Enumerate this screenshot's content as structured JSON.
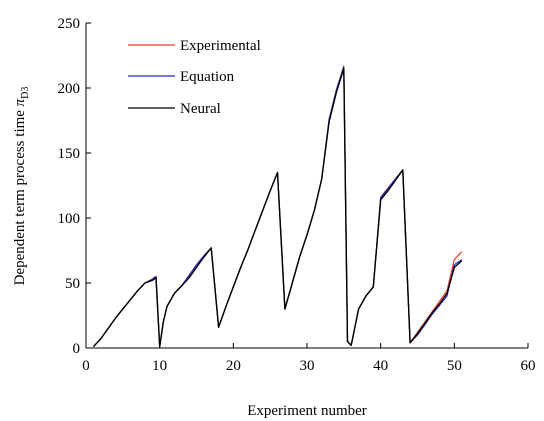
{
  "chart_data": {
    "type": "line",
    "xlabel": "Experiment number",
    "ylabel": "Dependent term process time ",
    "ylabel_symbol": "π",
    "ylabel_subscript": "D3",
    "xlim": [
      0,
      60
    ],
    "ylim": [
      0,
      250
    ],
    "xticks": [
      0,
      10,
      20,
      30,
      40,
      50,
      60
    ],
    "yticks": [
      0,
      50,
      100,
      150,
      200,
      250
    ],
    "xtick_labels": [
      "0",
      "10",
      "20",
      "30",
      "40",
      "50",
      "60"
    ],
    "ytick_labels": [
      "0",
      "50",
      "100",
      "150",
      "200",
      "250"
    ],
    "grid": false,
    "legend_position": "top-left",
    "series": [
      {
        "name": "Experimental",
        "color": "#e8392b",
        "x": [
          1,
          2,
          3,
          4,
          5,
          6,
          7,
          8,
          9,
          9.5,
          10,
          10.5,
          11,
          12,
          13,
          14,
          15,
          16,
          17,
          18,
          19,
          20,
          21,
          22,
          23,
          24,
          25,
          26,
          27,
          28,
          29,
          30,
          31,
          32,
          33,
          34,
          35,
          35.5,
          36,
          37,
          38,
          39,
          40,
          41,
          42,
          43,
          44,
          45,
          46,
          47,
          48,
          49,
          50,
          51
        ],
        "y": [
          1,
          7,
          15,
          23,
          30,
          37,
          44,
          50,
          53,
          55,
          1,
          20,
          32,
          42,
          48,
          55,
          63,
          70,
          77,
          16,
          32,
          47,
          62,
          76,
          91,
          106,
          121,
          135,
          30,
          50,
          70,
          87,
          106,
          130,
          175,
          198,
          217,
          5,
          2,
          30,
          40,
          47,
          115,
          122,
          130,
          137,
          4,
          12,
          20,
          28,
          36,
          44,
          68,
          74
        ]
      },
      {
        "name": "Equation",
        "color": "#2626cc",
        "x": [
          1,
          2,
          3,
          4,
          5,
          6,
          7,
          8,
          9,
          9.5,
          10,
          10.5,
          11,
          12,
          13,
          14,
          15,
          16,
          17,
          18,
          19,
          20,
          21,
          22,
          23,
          24,
          25,
          26,
          27,
          28,
          29,
          30,
          31,
          32,
          33,
          34,
          35,
          35.5,
          36,
          37,
          38,
          39,
          40,
          41,
          42,
          43,
          44,
          45,
          46,
          47,
          48,
          49,
          50,
          51
        ],
        "y": [
          1,
          7,
          15,
          23,
          30,
          37,
          44,
          50,
          53,
          55,
          1,
          20,
          32,
          42,
          48,
          56,
          64,
          71,
          77,
          16,
          32,
          47,
          62,
          76,
          91,
          106,
          121,
          135,
          30,
          50,
          70,
          87,
          106,
          130,
          176,
          199,
          216,
          5,
          2,
          30,
          40,
          47,
          116,
          123,
          130,
          137,
          4,
          10,
          18,
          26,
          33,
          40,
          64,
          68
        ]
      },
      {
        "name": "Neural",
        "color": "#000000",
        "x": [
          1,
          2,
          3,
          4,
          5,
          6,
          7,
          8,
          9,
          9.5,
          10,
          10.5,
          11,
          12,
          13,
          14,
          15,
          16,
          17,
          18,
          19,
          20,
          21,
          22,
          23,
          24,
          25,
          26,
          27,
          28,
          29,
          30,
          31,
          32,
          33,
          34,
          35,
          35.5,
          36,
          37,
          38,
          39,
          40,
          41,
          42,
          43,
          44,
          45,
          46,
          47,
          48,
          49,
          50,
          51
        ],
        "y": [
          1,
          7,
          15,
          23,
          30,
          37,
          44,
          50,
          52,
          54,
          1,
          20,
          32,
          42,
          48,
          54,
          62,
          70,
          77,
          16,
          32,
          47,
          62,
          76,
          91,
          106,
          121,
          135,
          30,
          50,
          70,
          87,
          106,
          130,
          174,
          197,
          215,
          5,
          2,
          30,
          40,
          47,
          114,
          121,
          129,
          137,
          4,
          11,
          19,
          27,
          34,
          42,
          62,
          67
        ]
      }
    ]
  }
}
